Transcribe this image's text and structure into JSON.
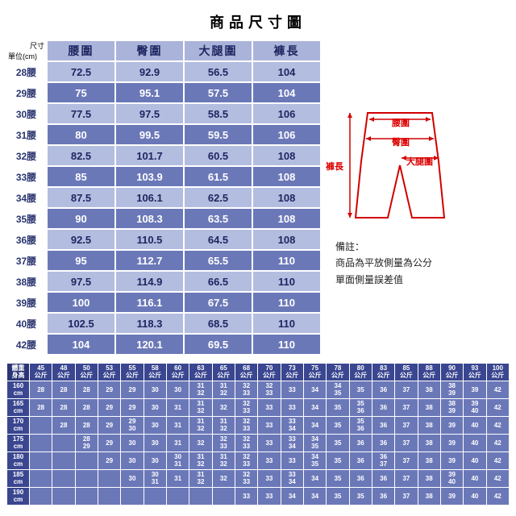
{
  "title": "商品尺寸圖",
  "unit": {
    "size_label": "尺寸",
    "unit_label": "單位(cm)"
  },
  "columns": [
    "腰圍",
    "臀圍",
    "大腿圍",
    "褲長"
  ],
  "rows": [
    {
      "size": "28腰",
      "values": [
        "72.5",
        "92.9",
        "56.5",
        "104"
      ]
    },
    {
      "size": "29腰",
      "values": [
        "75",
        "95.1",
        "57.5",
        "104"
      ]
    },
    {
      "size": "30腰",
      "values": [
        "77.5",
        "97.5",
        "58.5",
        "106"
      ]
    },
    {
      "size": "31腰",
      "values": [
        "80",
        "99.5",
        "59.5",
        "106"
      ]
    },
    {
      "size": "32腰",
      "values": [
        "82.5",
        "101.7",
        "60.5",
        "108"
      ]
    },
    {
      "size": "33腰",
      "values": [
        "85",
        "103.9",
        "61.5",
        "108"
      ]
    },
    {
      "size": "34腰",
      "values": [
        "87.5",
        "106.1",
        "62.5",
        "108"
      ]
    },
    {
      "size": "35腰",
      "values": [
        "90",
        "108.3",
        "63.5",
        "108"
      ]
    },
    {
      "size": "36腰",
      "values": [
        "92.5",
        "110.5",
        "64.5",
        "108"
      ]
    },
    {
      "size": "37腰",
      "values": [
        "95",
        "112.7",
        "65.5",
        "110"
      ]
    },
    {
      "size": "38腰",
      "values": [
        "97.5",
        "114.9",
        "66.5",
        "110"
      ]
    },
    {
      "size": "39腰",
      "values": [
        "100",
        "116.1",
        "67.5",
        "110"
      ]
    },
    {
      "size": "40腰",
      "values": [
        "102.5",
        "118.3",
        "68.5",
        "110"
      ]
    },
    {
      "size": "42腰",
      "values": [
        "104",
        "120.1",
        "69.5",
        "110"
      ]
    }
  ],
  "diagram_labels": {
    "waist": "腰圍",
    "hip": "臀圍",
    "thigh": "大腿圍",
    "length": "褲長"
  },
  "note": {
    "heading": "備註：",
    "line1": "商品為平放側量為公分",
    "line2": "單面側量誤差值"
  },
  "colors": {
    "header_bg": "#aab4da",
    "dark_row": "#6b78b8",
    "light_row": "#b3bde0",
    "text_dark": "#1e2660",
    "lower_hdr": "#3a4690",
    "lower_corner": "#2b3575",
    "diagram_stroke": "#d00000"
  },
  "lower": {
    "corner": {
      "top": "體重",
      "bot": "身高"
    },
    "weight_headers": [
      "45",
      "48",
      "50",
      "53",
      "55",
      "58",
      "60",
      "63",
      "65",
      "68",
      "70",
      "73",
      "75",
      "78",
      "80",
      "83",
      "85",
      "88",
      "90",
      "93",
      "100"
    ],
    "weight_unit": "公斤",
    "height_rows": [
      "160",
      "165",
      "170",
      "175",
      "180",
      "185",
      "190"
    ],
    "height_unit": "cm",
    "data": [
      [
        "28",
        "28",
        "28",
        "29",
        "29",
        "30",
        "30",
        "31/32",
        "31/32",
        "32/33",
        "32/33",
        "33",
        "34",
        "34/35",
        "35",
        "36",
        "37",
        "38",
        "38/39",
        "39",
        "42"
      ],
      [
        "28",
        "28",
        "28",
        "29",
        "29",
        "30",
        "31",
        "31/32",
        "32",
        "32/33",
        "33",
        "33",
        "34",
        "35",
        "35/36",
        "36",
        "37",
        "38",
        "38/39",
        "39/40",
        "42"
      ],
      [
        "",
        "28",
        "28",
        "29",
        "29/30",
        "30",
        "31",
        "31/32",
        "31/32",
        "32/33",
        "33",
        "33/34",
        "34",
        "35",
        "35/36",
        "36",
        "37",
        "38",
        "39",
        "40",
        "42"
      ],
      [
        "",
        "",
        "28/29",
        "29",
        "30",
        "30",
        "31",
        "32",
        "32/33",
        "32/33",
        "33",
        "33/34",
        "34/35",
        "35",
        "36",
        "36",
        "37",
        "38",
        "39",
        "40",
        "42"
      ],
      [
        "",
        "",
        "",
        "29",
        "30",
        "30",
        "30/31",
        "31/32",
        "31/32",
        "32/33",
        "33",
        "33",
        "34/35",
        "35",
        "36",
        "36/37",
        "37",
        "38",
        "39",
        "40",
        "42"
      ],
      [
        "",
        "",
        "",
        "",
        "30",
        "30/31",
        "31",
        "31/32",
        "32",
        "32/33",
        "33",
        "33/34",
        "34",
        "35",
        "36",
        "36",
        "37",
        "38",
        "39/40",
        "40",
        "42"
      ],
      [
        "",
        "",
        "",
        "",
        "",
        "",
        "",
        "",
        "",
        "33",
        "33",
        "34",
        "34",
        "35",
        "35",
        "36",
        "37",
        "38",
        "39",
        "40",
        "42"
      ]
    ]
  }
}
